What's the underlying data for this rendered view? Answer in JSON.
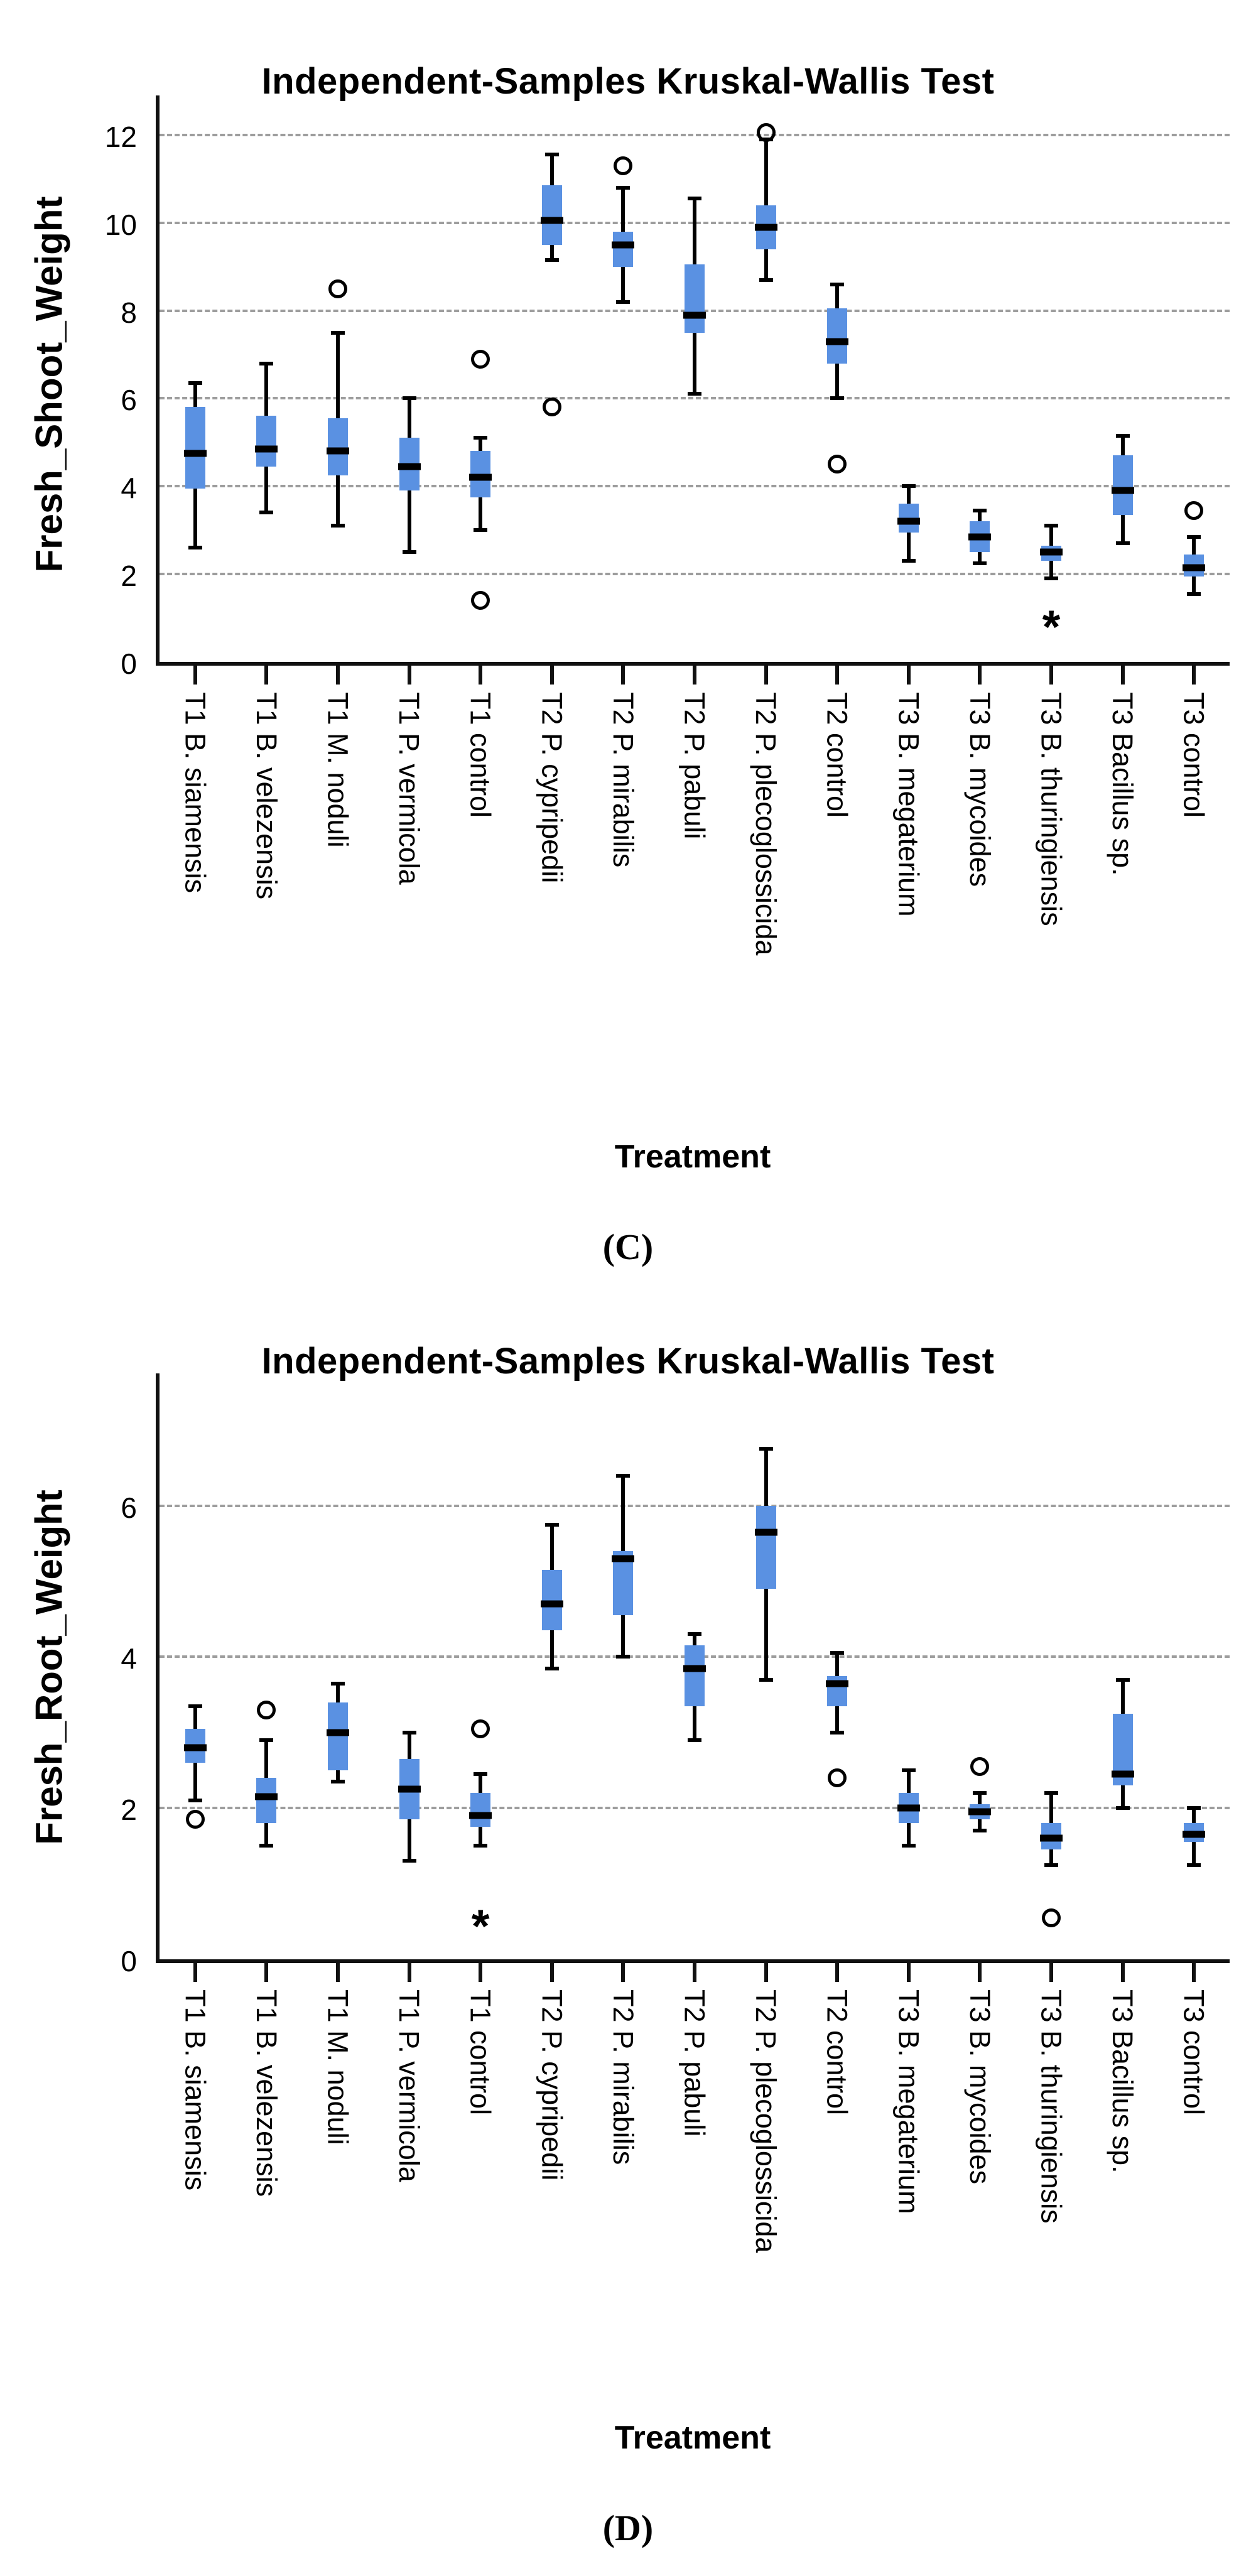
{
  "colors": {
    "box_fill": "#5A91E2",
    "median_line": "#000000",
    "whisker": "#000000",
    "gridline": "#9D9D9D",
    "axis": "#111111",
    "background": "#FFFFFF"
  },
  "chart_data": [
    {
      "type": "box",
      "panel": "C",
      "title": "Independent-Samples Kruskal-Wallis Test",
      "xlabel": "Treatment",
      "ylabel": "Fresh_Shoot_Weight",
      "caption": "(C)",
      "ylim": [
        0,
        12.9
      ],
      "yticks": [
        0,
        2,
        4,
        6,
        8,
        10,
        12
      ],
      "grid": "horizontal-dashed",
      "legend": "none",
      "categories": [
        "T1 B. siamensis",
        "T1 B. velezensis",
        "T1 M. noduli",
        "T1 P. vermicola",
        "T1 control",
        "T2 P. cypripedii",
        "T2 P. mirabilis",
        "T2 P. pabuli",
        "T2 P. plecoglossicida",
        "T2 control",
        "T3 B. megaterium",
        "T3 B. mycoides",
        "T3 B. thuringiensis",
        "T3 Bacillus sp.",
        "T3 control"
      ],
      "boxes": [
        {
          "category": "T1 B. siamensis",
          "whislo": 2.6,
          "q1": 3.95,
          "med": 4.75,
          "q3": 5.8,
          "whishi": 6.35,
          "outliers": [],
          "extremes": []
        },
        {
          "category": "T1 B. velezensis",
          "whislo": 3.4,
          "q1": 4.45,
          "med": 4.85,
          "q3": 5.6,
          "whishi": 6.8,
          "outliers": [],
          "extremes": []
        },
        {
          "category": "T1 M. noduli",
          "whislo": 3.1,
          "q1": 4.25,
          "med": 4.8,
          "q3": 5.55,
          "whishi": 7.5,
          "outliers": [
            8.5
          ],
          "extremes": []
        },
        {
          "category": "T1 P. vermicola",
          "whislo": 2.5,
          "q1": 3.9,
          "med": 4.45,
          "q3": 5.1,
          "whishi": 6.0,
          "outliers": [],
          "extremes": []
        },
        {
          "category": "T1 control",
          "whislo": 3.0,
          "q1": 3.75,
          "med": 4.2,
          "q3": 4.8,
          "whishi": 5.1,
          "outliers": [
            6.9,
            1.4
          ],
          "extremes": []
        },
        {
          "category": "T2 P. cypripedii",
          "whislo": 9.15,
          "q1": 9.5,
          "med": 10.05,
          "q3": 10.85,
          "whishi": 11.55,
          "outliers": [
            5.8
          ],
          "extremes": []
        },
        {
          "category": "T2 P. mirabilis",
          "whislo": 8.2,
          "q1": 9.0,
          "med": 9.5,
          "q3": 9.8,
          "whishi": 10.8,
          "outliers": [
            11.3
          ],
          "extremes": []
        },
        {
          "category": "T2 P. pabuli",
          "whislo": 6.1,
          "q1": 7.5,
          "med": 7.9,
          "q3": 9.05,
          "whishi": 10.55,
          "outliers": [],
          "extremes": []
        },
        {
          "category": "T2 P. plecoglossicida",
          "whislo": 8.7,
          "q1": 9.4,
          "med": 9.9,
          "q3": 10.4,
          "whishi": 11.9,
          "outliers": [
            12.05
          ],
          "extremes": []
        },
        {
          "category": "T2 control",
          "whislo": 6.0,
          "q1": 6.8,
          "med": 7.3,
          "q3": 8.05,
          "whishi": 8.6,
          "outliers": [
            4.5
          ],
          "extremes": []
        },
        {
          "category": "T3 B. megaterium",
          "whislo": 2.3,
          "q1": 2.95,
          "med": 3.2,
          "q3": 3.6,
          "whishi": 4.0,
          "outliers": [],
          "extremes": []
        },
        {
          "category": "T3 B. mycoides",
          "whislo": 2.25,
          "q1": 2.5,
          "med": 2.85,
          "q3": 3.2,
          "whishi": 3.45,
          "outliers": [],
          "extremes": []
        },
        {
          "category": "T3 B. thuringiensis",
          "whislo": 1.9,
          "q1": 2.3,
          "med": 2.5,
          "q3": 2.65,
          "whishi": 3.1,
          "outliers": [],
          "extremes": [
            0.9
          ]
        },
        {
          "category": "T3 Bacillus sp.",
          "whislo": 2.7,
          "q1": 3.35,
          "med": 3.9,
          "q3": 4.7,
          "whishi": 5.15,
          "outliers": [],
          "extremes": []
        },
        {
          "category": "T3 control",
          "whislo": 1.55,
          "q1": 1.95,
          "med": 2.15,
          "q3": 2.45,
          "whishi": 2.85,
          "outliers": [
            3.45
          ],
          "extremes": []
        }
      ]
    },
    {
      "type": "box",
      "panel": "D",
      "title": "Independent-Samples Kruskal-Wallis Test",
      "xlabel": "Treatment",
      "ylabel": "Fresh_Root_Weight",
      "caption": "(D)",
      "ylim": [
        0,
        7.75
      ],
      "yticks": [
        0,
        2,
        4,
        6
      ],
      "grid": "horizontal-dashed",
      "legend": "none",
      "categories": [
        "T1 B. siamensis",
        "T1 B. velezensis",
        "T1 M. noduli",
        "T1 P. vermicola",
        "T1 control",
        "T2 P. cypripedii",
        "T2 P. mirabilis",
        "T2 P. pabuli",
        "T2 P. plecoglossicida",
        "T2 control",
        "T3 B. megaterium",
        "T3 B. mycoides",
        "T3 B. thuringiensis",
        "T3 Bacillus sp.",
        "T3 control"
      ],
      "boxes": [
        {
          "category": "T1 B. siamensis",
          "whislo": 2.1,
          "q1": 2.6,
          "med": 2.8,
          "q3": 3.05,
          "whishi": 3.35,
          "outliers": [
            1.85
          ],
          "extremes": []
        },
        {
          "category": "T1 B. velezensis",
          "whislo": 1.5,
          "q1": 1.8,
          "med": 2.15,
          "q3": 2.4,
          "whishi": 2.9,
          "outliers": [
            3.3
          ],
          "extremes": []
        },
        {
          "category": "T1 M. noduli",
          "whislo": 2.35,
          "q1": 2.5,
          "med": 3.0,
          "q3": 3.4,
          "whishi": 3.65,
          "outliers": [],
          "extremes": []
        },
        {
          "category": "T1 P. vermicola",
          "whislo": 1.3,
          "q1": 1.85,
          "med": 2.25,
          "q3": 2.65,
          "whishi": 3.0,
          "outliers": [],
          "extremes": []
        },
        {
          "category": "T1 control",
          "whislo": 1.5,
          "q1": 1.75,
          "med": 1.9,
          "q3": 2.2,
          "whishi": 2.45,
          "outliers": [
            3.05
          ],
          "extremes": [
            0.5
          ]
        },
        {
          "category": "T2 P. cypripedii",
          "whislo": 3.85,
          "q1": 4.35,
          "med": 4.7,
          "q3": 5.15,
          "whishi": 5.75,
          "outliers": [],
          "extremes": []
        },
        {
          "category": "T2 P. mirabilis",
          "whislo": 4.0,
          "q1": 4.55,
          "med": 5.3,
          "q3": 5.4,
          "whishi": 6.4,
          "outliers": [],
          "extremes": []
        },
        {
          "category": "T2 P. pabuli",
          "whislo": 2.9,
          "q1": 3.35,
          "med": 3.85,
          "q3": 4.15,
          "whishi": 4.3,
          "outliers": [],
          "extremes": []
        },
        {
          "category": "T2 P. plecoglossicida",
          "whislo": 3.7,
          "q1": 4.9,
          "med": 5.65,
          "q3": 6.0,
          "whishi": 6.75,
          "outliers": [],
          "extremes": []
        },
        {
          "category": "T2 control",
          "whislo": 3.0,
          "q1": 3.35,
          "med": 3.65,
          "q3": 3.75,
          "whishi": 4.05,
          "outliers": [
            2.4
          ],
          "extremes": []
        },
        {
          "category": "T3 B. megaterium",
          "whislo": 1.5,
          "q1": 1.8,
          "med": 2.0,
          "q3": 2.2,
          "whishi": 2.5,
          "outliers": [],
          "extremes": []
        },
        {
          "category": "T3 B. mycoides",
          "whislo": 1.7,
          "q1": 1.85,
          "med": 1.95,
          "q3": 2.05,
          "whishi": 2.2,
          "outliers": [
            2.55
          ],
          "extremes": []
        },
        {
          "category": "T3 B. thuringiensis",
          "whislo": 1.25,
          "q1": 1.45,
          "med": 1.6,
          "q3": 1.8,
          "whishi": 2.2,
          "outliers": [
            0.55
          ],
          "extremes": []
        },
        {
          "category": "T3 Bacillus sp.",
          "whislo": 2.0,
          "q1": 2.3,
          "med": 2.45,
          "q3": 3.25,
          "whishi": 3.7,
          "outliers": [],
          "extremes": []
        },
        {
          "category": "T3 control",
          "whislo": 1.25,
          "q1": 1.55,
          "med": 1.65,
          "q3": 1.8,
          "whishi": 2.0,
          "outliers": [],
          "extremes": []
        }
      ]
    }
  ]
}
